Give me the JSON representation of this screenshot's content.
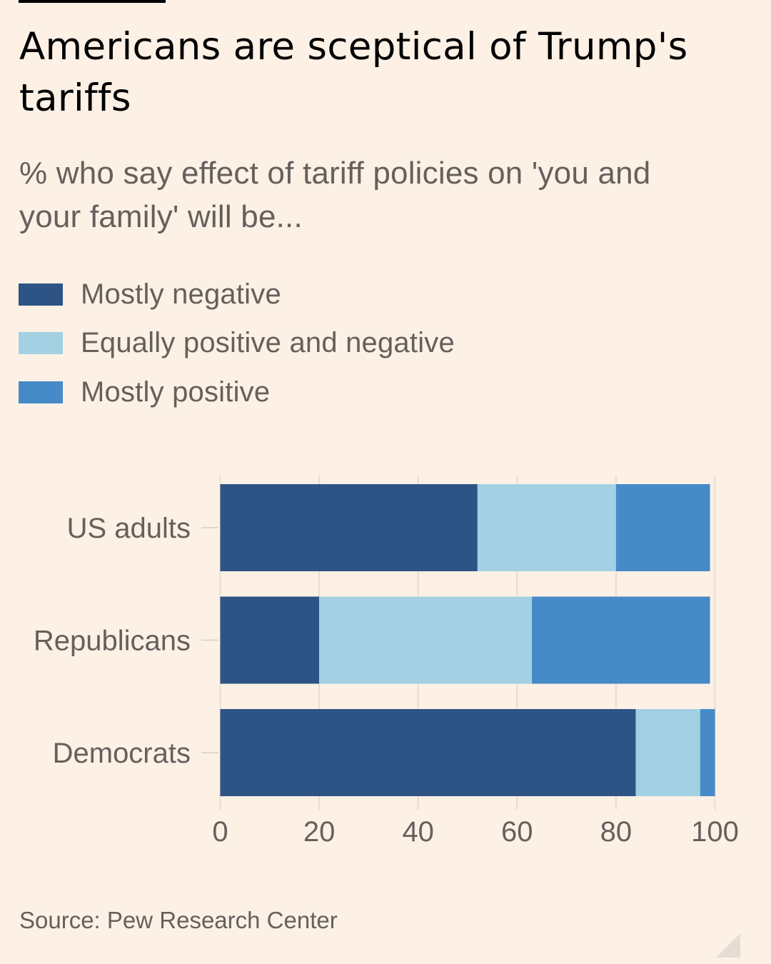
{
  "header": {
    "title": "Americans are sceptical of Trump's tariffs",
    "subtitle": "% who say effect of tariff policies on 'you and your family' will be..."
  },
  "legend": [
    {
      "label": "Mostly negative",
      "color": "#2e5486"
    },
    {
      "label": "Equally positive and negative",
      "color": "#a3d0e3"
    },
    {
      "label": "Mostly positive",
      "color": "#468ac8"
    }
  ],
  "chart_data": {
    "type": "bar",
    "orientation": "horizontal",
    "stacked": true,
    "title": "Americans are sceptical of Trump's tariffs",
    "subtitle": "% who say effect of tariff policies on 'you and your family' will be...",
    "categories": [
      "US adults",
      "Republicans",
      "Democrats"
    ],
    "series": [
      {
        "name": "Mostly negative",
        "color": "#2e5486",
        "values": [
          52,
          20,
          84
        ]
      },
      {
        "name": "Equally positive and negative",
        "color": "#a3d0e3",
        "values": [
          28,
          43,
          13
        ]
      },
      {
        "name": "Mostly positive",
        "color": "#468ac8",
        "values": [
          19,
          36,
          3
        ]
      }
    ],
    "xlabel": "",
    "ylabel": "",
    "xlim": [
      0,
      100
    ],
    "xticks": [
      0,
      20,
      40,
      60,
      80,
      100
    ],
    "grid": true,
    "legend_position": "top-left"
  },
  "footer": {
    "source": "Source: Pew Research Center"
  }
}
